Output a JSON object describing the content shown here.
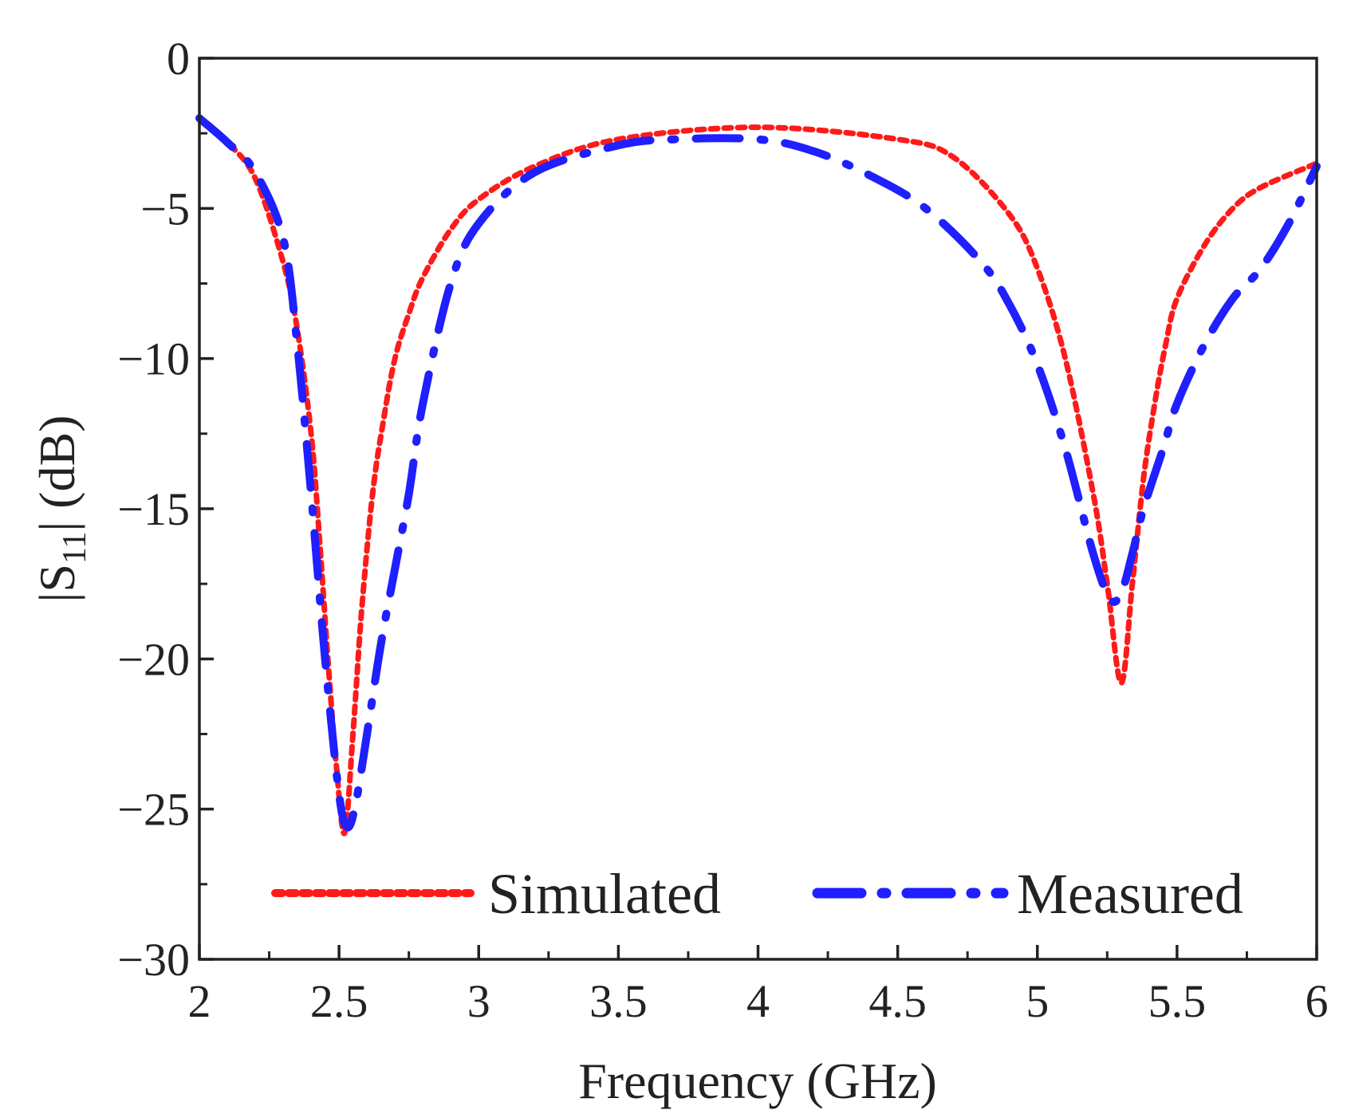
{
  "chart_data": {
    "type": "line",
    "title": "",
    "xlabel": "Frequency (GHz)",
    "ylabel": "|S11| (dB)",
    "ylabel_parts": {
      "pre": "|S",
      "sub": "11",
      "post": "| (dB)"
    },
    "xlim": [
      2,
      6
    ],
    "ylim": [
      -30,
      0
    ],
    "xticks": [
      2,
      2.5,
      3,
      3.5,
      4,
      4.5,
      5,
      5.5,
      6
    ],
    "xtick_labels": [
      "2",
      "2.5",
      "3",
      "3.5",
      "4",
      "4.5",
      "5",
      "5.5",
      "6"
    ],
    "yticks": [
      0,
      -5,
      -10,
      -15,
      -20,
      -25,
      -30
    ],
    "ytick_labels": [
      "0",
      "−5",
      "−10",
      "−15",
      "−20",
      "−25",
      "−30"
    ],
    "grid": false,
    "legend_position": "bottom",
    "series": [
      {
        "name": "Simulated",
        "color": "#ff1a1a",
        "style": "dotted",
        "x": [
          2.0,
          2.1,
          2.2,
          2.3,
          2.35,
          2.4,
          2.43,
          2.46,
          2.49,
          2.52,
          2.55,
          2.58,
          2.62,
          2.66,
          2.7,
          2.75,
          2.8,
          2.9,
          3.0,
          3.2,
          3.5,
          4.0,
          4.5,
          4.7,
          4.9,
          5.0,
          5.1,
          5.2,
          5.25,
          5.3,
          5.34,
          5.38,
          5.42,
          5.46,
          5.5,
          5.6,
          5.7,
          5.8,
          6.0
        ],
        "y": [
          -2.0,
          -2.8,
          -4.0,
          -6.8,
          -9.0,
          -12.5,
          -16.0,
          -20.0,
          -23.5,
          -25.8,
          -22.5,
          -18.5,
          -14.5,
          -12.0,
          -10.0,
          -8.5,
          -7.3,
          -5.7,
          -4.7,
          -3.6,
          -2.7,
          -2.3,
          -2.7,
          -3.3,
          -5.2,
          -7.0,
          -10.0,
          -14.5,
          -17.5,
          -20.8,
          -17.5,
          -14.0,
          -11.5,
          -9.5,
          -8.0,
          -6.2,
          -5.0,
          -4.3,
          -3.5
        ]
      },
      {
        "name": "Measured",
        "color": "#1f1fff",
        "style": "dashdot",
        "x": [
          2.0,
          2.1,
          2.2,
          2.3,
          2.35,
          2.4,
          2.45,
          2.5,
          2.53,
          2.56,
          2.6,
          2.65,
          2.7,
          2.75,
          2.8,
          2.9,
          3.0,
          3.2,
          3.5,
          3.7,
          4.0,
          4.2,
          4.4,
          4.6,
          4.8,
          4.9,
          5.0,
          5.1,
          5.2,
          5.26,
          5.3,
          5.34,
          5.38,
          5.45,
          5.5,
          5.6,
          5.7,
          5.8,
          5.9,
          6.0
        ],
        "y": [
          -2.0,
          -2.8,
          -3.8,
          -6.0,
          -9.5,
          -14.5,
          -20.0,
          -24.5,
          -25.6,
          -24.8,
          -22.5,
          -19.5,
          -17.0,
          -14.5,
          -11.5,
          -7.5,
          -5.5,
          -3.8,
          -2.9,
          -2.7,
          -2.7,
          -3.1,
          -3.9,
          -5.0,
          -6.8,
          -8.2,
          -10.2,
          -13.0,
          -16.5,
          -18.0,
          -17.8,
          -16.5,
          -15.0,
          -13.0,
          -11.5,
          -9.5,
          -8.0,
          -7.0,
          -5.5,
          -3.6
        ]
      }
    ]
  }
}
